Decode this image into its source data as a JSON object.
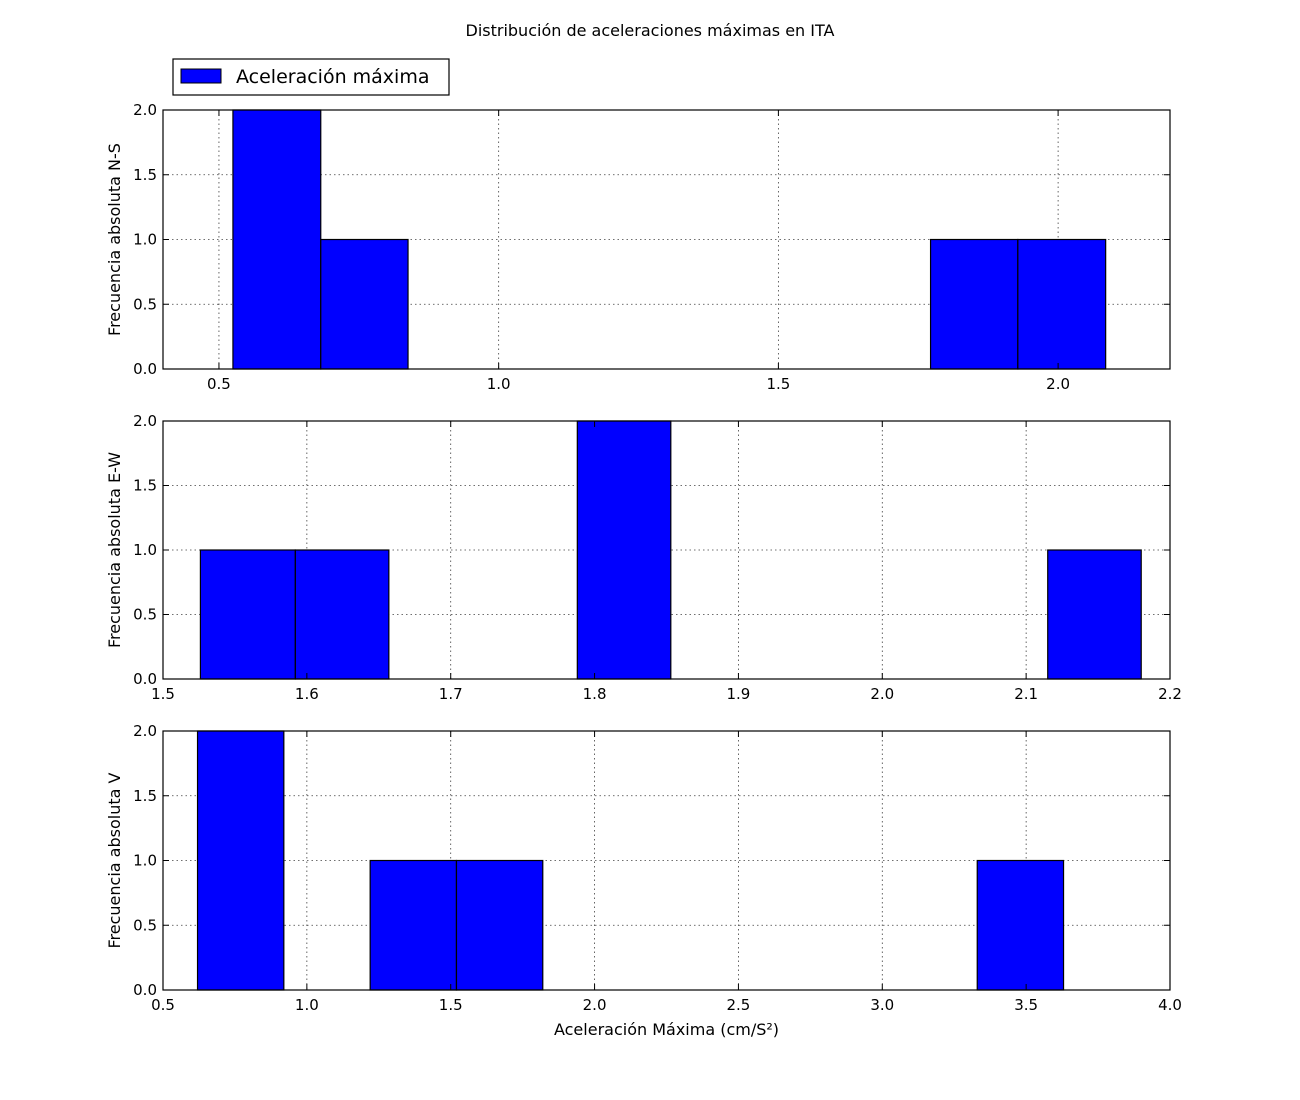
{
  "colors": {
    "bar": "#0000ff",
    "edge": "#000000",
    "background": "#ffffff"
  },
  "legend": {
    "label": "Aceleración máxima",
    "placement": "top-left"
  },
  "chart_data": [
    {
      "type": "bar",
      "title": "Distribución de aceleraciones máximas en ITA",
      "ylabel": "Frecuencia absoluta N-S",
      "xlabel": "",
      "xlim": [
        0.4,
        2.2
      ],
      "ylim": [
        0,
        2
      ],
      "xticks": [
        "0.5",
        "1.0",
        "1.5",
        "2.0"
      ],
      "yticks": [
        "0.0",
        "0.5",
        "1.0",
        "1.5",
        "2.0"
      ],
      "grid": true,
      "bins": [
        {
          "x0": 0.525,
          "x1": 0.682,
          "count": 2
        },
        {
          "x0": 0.682,
          "x1": 0.838,
          "count": 1
        },
        {
          "x0": 1.772,
          "x1": 1.928,
          "count": 1
        },
        {
          "x0": 1.928,
          "x1": 2.085,
          "count": 1
        }
      ]
    },
    {
      "type": "bar",
      "ylabel": "Frecuencia absoluta E-W",
      "xlabel": "",
      "xlim": [
        1.5,
        2.2
      ],
      "ylim": [
        0,
        2
      ],
      "xticks": [
        "1.5",
        "1.6",
        "1.7",
        "1.8",
        "1.9",
        "2.0",
        "2.1",
        "2.2"
      ],
      "yticks": [
        "0.0",
        "0.5",
        "1.0",
        "1.5",
        "2.0"
      ],
      "grid": true,
      "bins": [
        {
          "x0": 1.526,
          "x1": 1.592,
          "count": 1
        },
        {
          "x0": 1.592,
          "x1": 1.657,
          "count": 1
        },
        {
          "x0": 1.788,
          "x1": 1.853,
          "count": 2
        },
        {
          "x0": 2.115,
          "x1": 2.18,
          "count": 1
        }
      ]
    },
    {
      "type": "bar",
      "ylabel": "Frecuencia absoluta V",
      "xlabel": "Aceleración Máxima (cm/S²)",
      "xlim": [
        0.5,
        4.0
      ],
      "ylim": [
        0,
        2
      ],
      "xticks": [
        "0.5",
        "1.0",
        "1.5",
        "2.0",
        "2.5",
        "3.0",
        "3.5",
        "4.0"
      ],
      "yticks": [
        "0.0",
        "0.5",
        "1.0",
        "1.5",
        "2.0"
      ],
      "grid": true,
      "bins": [
        {
          "x0": 0.62,
          "x1": 0.92,
          "count": 2
        },
        {
          "x0": 1.22,
          "x1": 1.52,
          "count": 1
        },
        {
          "x0": 1.52,
          "x1": 1.82,
          "count": 1
        },
        {
          "x0": 3.33,
          "x1": 3.63,
          "count": 1
        }
      ]
    }
  ]
}
